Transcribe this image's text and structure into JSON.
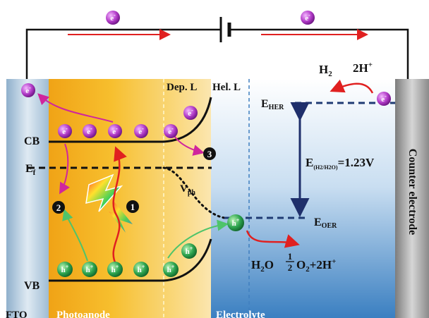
{
  "carriers": {
    "electron_symbol": "e",
    "electron_charge": "-",
    "hole_symbol": "h",
    "hole_charge": "+"
  },
  "labels": {
    "dep_layer": "Dep. L",
    "hel_layer": "Hel. L",
    "cb": "CB",
    "ef": "E",
    "ef_sub": "f",
    "vb": "VB",
    "vph": "V",
    "vph_sub": "ph",
    "e_her": "E",
    "e_her_sub": "HER",
    "e_oer": "E",
    "e_oer_sub": "OER",
    "gap_prefix": "E",
    "gap_sub": "(H2/H2O)",
    "gap_value": "=1.23V",
    "h2": "H",
    "h2_sub": "2",
    "two_h": "2H",
    "two_h_sup": "+",
    "water": "H",
    "water_sub": "2",
    "water_tail": "O",
    "half_num": "1",
    "half_den": "2",
    "oxygen_products": "O",
    "oxygen_sub": "2",
    "oxygen_tail": "+2H",
    "oxygen_sup": "+",
    "step1": "1",
    "step2": "2",
    "step3": "3",
    "fto": "FTO",
    "photoanode": "Photoanode",
    "electrolyte": "Electrolyte",
    "counter_electrode": "Counter electrode"
  },
  "colors": {
    "electron": "#b23cc8",
    "hole": "#2ea44f",
    "photoanode": "#f6b71f",
    "electrolyte": "#5d9bd3",
    "arrow_red": "#e02020",
    "arrow_magenta": "#d0259d",
    "arrow_green": "#4ec46a",
    "level_dash": "#1f3b73"
  }
}
